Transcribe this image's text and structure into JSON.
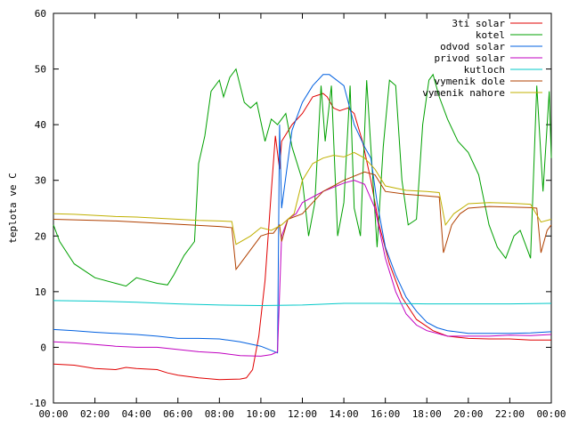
{
  "chart_data": {
    "type": "line",
    "title": "",
    "xlabel": "",
    "ylabel": "teplota ve C",
    "ylim": [
      -10,
      60
    ],
    "yticks": [
      -10,
      0,
      10,
      20,
      30,
      40,
      50,
      60
    ],
    "xlim": [
      0,
      24
    ],
    "xticks": [
      "00:00",
      "02:00",
      "04:00",
      "06:00",
      "08:00",
      "10:00",
      "12:00",
      "14:00",
      "16:00",
      "18:00",
      "20:00",
      "22:00",
      "00:00"
    ],
    "grid": false,
    "legend_position": "top-right",
    "series": [
      {
        "name": "3ti solar",
        "color": "#e00000",
        "points": [
          [
            0,
            -3
          ],
          [
            1,
            -3.2
          ],
          [
            2,
            -3.8
          ],
          [
            3,
            -4
          ],
          [
            3.5,
            -3.6
          ],
          [
            4,
            -3.8
          ],
          [
            5,
            -4
          ],
          [
            5.5,
            -4.6
          ],
          [
            6,
            -5
          ],
          [
            7,
            -5.5
          ],
          [
            8,
            -5.8
          ],
          [
            9,
            -5.7
          ],
          [
            9.3,
            -5.5
          ],
          [
            9.6,
            -4
          ],
          [
            9.9,
            2
          ],
          [
            10.2,
            12
          ],
          [
            10.5,
            28
          ],
          [
            10.7,
            38
          ],
          [
            10.9,
            32
          ],
          [
            11,
            37
          ],
          [
            11.5,
            40
          ],
          [
            12,
            42
          ],
          [
            12.5,
            45
          ],
          [
            13,
            45.6
          ],
          [
            13.2,
            45
          ],
          [
            13.5,
            43
          ],
          [
            13.8,
            42.5
          ],
          [
            14.2,
            43
          ],
          [
            14.5,
            42
          ],
          [
            14.9,
            37
          ],
          [
            15.3,
            30
          ],
          [
            15.7,
            22
          ],
          [
            16.2,
            15
          ],
          [
            16.8,
            9
          ],
          [
            17.5,
            5
          ],
          [
            18.3,
            3
          ],
          [
            19,
            2
          ],
          [
            20,
            1.6
          ],
          [
            21,
            1.5
          ],
          [
            22,
            1.5
          ],
          [
            23,
            1.3
          ],
          [
            24,
            1.3
          ]
        ]
      },
      {
        "name": "kotel",
        "color": "#00a000",
        "points": [
          [
            0,
            22
          ],
          [
            0.3,
            19
          ],
          [
            1,
            15
          ],
          [
            2,
            12.5
          ],
          [
            3,
            11.5
          ],
          [
            3.5,
            11
          ],
          [
            4,
            12.5
          ],
          [
            4.5,
            12
          ],
          [
            5,
            11.5
          ],
          [
            5.5,
            11.2
          ],
          [
            5.8,
            13
          ],
          [
            6.3,
            16.5
          ],
          [
            6.8,
            19
          ],
          [
            7,
            33
          ],
          [
            7.3,
            38
          ],
          [
            7.6,
            46
          ],
          [
            8,
            48
          ],
          [
            8.2,
            45
          ],
          [
            8.5,
            48.5
          ],
          [
            8.8,
            50
          ],
          [
            9.2,
            44
          ],
          [
            9.5,
            43
          ],
          [
            9.8,
            44
          ],
          [
            10.2,
            37
          ],
          [
            10.5,
            41
          ],
          [
            10.8,
            40
          ],
          [
            11.2,
            42
          ],
          [
            11.5,
            36
          ],
          [
            12,
            30
          ],
          [
            12.3,
            20
          ],
          [
            12.6,
            26
          ],
          [
            12.9,
            47
          ],
          [
            13.1,
            37
          ],
          [
            13.4,
            47
          ],
          [
            13.7,
            20
          ],
          [
            14,
            26
          ],
          [
            14.3,
            47
          ],
          [
            14.5,
            25
          ],
          [
            14.8,
            20
          ],
          [
            15.1,
            48
          ],
          [
            15.4,
            30
          ],
          [
            15.6,
            18
          ],
          [
            15.9,
            36
          ],
          [
            16.2,
            48
          ],
          [
            16.5,
            47
          ],
          [
            16.8,
            30
          ],
          [
            17.1,
            22
          ],
          [
            17.5,
            23
          ],
          [
            17.8,
            40
          ],
          [
            18.1,
            48
          ],
          [
            18.3,
            49
          ],
          [
            18.6,
            45
          ],
          [
            19,
            41
          ],
          [
            19.5,
            37
          ],
          [
            20,
            35
          ],
          [
            20.5,
            31
          ],
          [
            21,
            22
          ],
          [
            21.4,
            18
          ],
          [
            21.8,
            16
          ],
          [
            22.2,
            20
          ],
          [
            22.5,
            21
          ],
          [
            22.8,
            18
          ],
          [
            23,
            16
          ],
          [
            23.3,
            47
          ],
          [
            23.6,
            28
          ],
          [
            23.9,
            46
          ],
          [
            24,
            34
          ]
        ]
      },
      {
        "name": "odvod solar",
        "color": "#0060e0",
        "points": [
          [
            0,
            3.2
          ],
          [
            1,
            3
          ],
          [
            2,
            2.7
          ],
          [
            3,
            2.5
          ],
          [
            4,
            2.3
          ],
          [
            5,
            2
          ],
          [
            6,
            1.6
          ],
          [
            7,
            1.6
          ],
          [
            8,
            1.5
          ],
          [
            9,
            1
          ],
          [
            10,
            0.2
          ],
          [
            10.8,
            -1
          ],
          [
            10.9,
            40
          ],
          [
            11,
            25
          ],
          [
            11.5,
            39
          ],
          [
            12,
            44
          ],
          [
            12.5,
            47
          ],
          [
            13,
            49
          ],
          [
            13.3,
            49
          ],
          [
            14,
            47
          ],
          [
            14.5,
            40
          ],
          [
            15,
            36
          ],
          [
            15.3,
            34
          ],
          [
            15.6,
            26
          ],
          [
            16,
            18
          ],
          [
            16.5,
            13
          ],
          [
            17,
            9
          ],
          [
            17.5,
            6.5
          ],
          [
            18,
            4.5
          ],
          [
            18.5,
            3.5
          ],
          [
            19,
            3
          ],
          [
            20,
            2.5
          ],
          [
            21,
            2.5
          ],
          [
            22,
            2.5
          ],
          [
            23,
            2.6
          ],
          [
            24,
            2.8
          ]
        ]
      },
      {
        "name": "privod solar",
        "color": "#c000c0",
        "points": [
          [
            0,
            1
          ],
          [
            1,
            0.8
          ],
          [
            2,
            0.5
          ],
          [
            3,
            0.2
          ],
          [
            4,
            0
          ],
          [
            5,
            0
          ],
          [
            6,
            -0.4
          ],
          [
            7,
            -0.8
          ],
          [
            8,
            -1
          ],
          [
            9,
            -1.5
          ],
          [
            10,
            -1.6
          ],
          [
            10.5,
            -1.3
          ],
          [
            10.8,
            -0.8
          ],
          [
            11,
            20
          ],
          [
            11.3,
            23
          ],
          [
            11.7,
            24
          ],
          [
            12,
            26
          ],
          [
            12.5,
            27
          ],
          [
            13,
            28
          ],
          [
            14,
            29.5
          ],
          [
            14.5,
            30
          ],
          [
            15,
            29.3
          ],
          [
            15.5,
            25
          ],
          [
            16,
            16
          ],
          [
            16.5,
            10
          ],
          [
            17,
            6
          ],
          [
            17.5,
            4
          ],
          [
            18,
            3
          ],
          [
            19,
            2
          ],
          [
            20,
            2
          ],
          [
            21,
            2
          ],
          [
            22,
            2.2
          ],
          [
            23,
            2.1
          ],
          [
            24,
            2.3
          ]
        ]
      },
      {
        "name": "kutloch",
        "color": "#00c8c8",
        "points": [
          [
            0,
            8.4
          ],
          [
            2,
            8.3
          ],
          [
            4,
            8.1
          ],
          [
            6,
            7.8
          ],
          [
            8,
            7.6
          ],
          [
            10,
            7.5
          ],
          [
            12,
            7.6
          ],
          [
            14,
            7.9
          ],
          [
            16,
            7.9
          ],
          [
            18,
            7.8
          ],
          [
            20,
            7.8
          ],
          [
            22,
            7.8
          ],
          [
            24,
            7.9
          ]
        ]
      },
      {
        "name": "vymenik dole",
        "color": "#b04000",
        "points": [
          [
            0,
            23
          ],
          [
            1,
            22.9
          ],
          [
            2,
            22.8
          ],
          [
            3,
            22.7
          ],
          [
            4,
            22.5
          ],
          [
            5,
            22.3
          ],
          [
            6,
            22.1
          ],
          [
            7,
            21.9
          ],
          [
            8,
            21.7
          ],
          [
            8.6,
            21.5
          ],
          [
            8.8,
            14
          ],
          [
            9.2,
            16
          ],
          [
            9.6,
            18
          ],
          [
            10,
            20
          ],
          [
            10.4,
            20.5
          ],
          [
            10.6,
            20.5
          ],
          [
            10.9,
            22
          ],
          [
            11,
            19
          ],
          [
            11.3,
            23
          ],
          [
            12,
            24
          ],
          [
            12.5,
            26
          ],
          [
            13,
            28
          ],
          [
            14,
            30
          ],
          [
            15,
            31.5
          ],
          [
            15.5,
            31
          ],
          [
            16,
            28
          ],
          [
            17,
            27.5
          ],
          [
            18,
            27.2
          ],
          [
            18.6,
            27
          ],
          [
            18.8,
            17
          ],
          [
            19.2,
            22
          ],
          [
            19.6,
            24
          ],
          [
            20,
            25
          ],
          [
            21,
            25.3
          ],
          [
            22,
            25.2
          ],
          [
            23,
            25.1
          ],
          [
            23.3,
            25
          ],
          [
            23.5,
            17
          ],
          [
            23.8,
            21
          ],
          [
            24,
            22
          ]
        ]
      },
      {
        "name": "vymenik nahore",
        "color": "#c0b000",
        "points": [
          [
            0,
            24
          ],
          [
            1,
            23.9
          ],
          [
            2,
            23.7
          ],
          [
            3,
            23.5
          ],
          [
            4,
            23.4
          ],
          [
            5,
            23.2
          ],
          [
            6,
            23
          ],
          [
            7,
            22.8
          ],
          [
            8,
            22.7
          ],
          [
            8.6,
            22.6
          ],
          [
            8.8,
            18.5
          ],
          [
            9.5,
            20
          ],
          [
            10,
            21.5
          ],
          [
            10.5,
            21
          ],
          [
            11,
            22
          ],
          [
            11.3,
            23
          ],
          [
            11.6,
            24
          ],
          [
            12,
            30
          ],
          [
            12.5,
            33
          ],
          [
            13,
            34
          ],
          [
            13.5,
            34.5
          ],
          [
            14,
            34.2
          ],
          [
            14.5,
            35
          ],
          [
            15,
            34
          ],
          [
            15.5,
            32
          ],
          [
            16,
            29
          ],
          [
            17,
            28.2
          ],
          [
            18,
            28
          ],
          [
            18.6,
            27.8
          ],
          [
            18.9,
            22
          ],
          [
            19.3,
            24
          ],
          [
            20,
            25.8
          ],
          [
            21,
            26
          ],
          [
            22,
            25.9
          ],
          [
            23,
            25.7
          ],
          [
            23.5,
            22.5
          ],
          [
            24,
            23
          ]
        ]
      }
    ]
  }
}
